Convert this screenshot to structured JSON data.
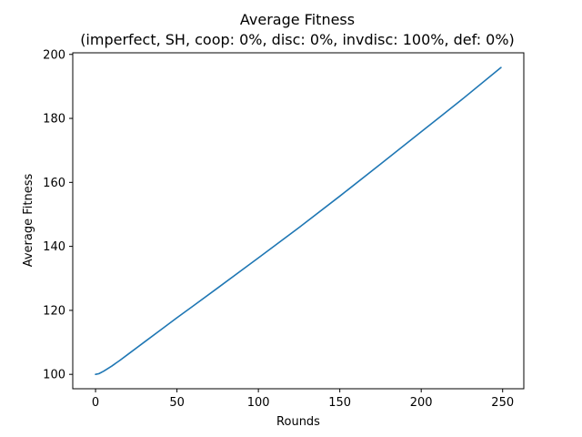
{
  "chart_data": {
    "type": "line",
    "title": "Average Fitness",
    "subtitle": "(imperfect, SH, coop: 0%, disc: 0%, invdisc: 100%, def: 0%)",
    "xlabel": "Rounds",
    "ylabel": "Average Fitness",
    "xlim": [
      -14,
      263
    ],
    "ylim": [
      95.5,
      200.5
    ],
    "xticks": [
      0,
      50,
      100,
      150,
      200,
      250
    ],
    "yticks": [
      100,
      120,
      140,
      160,
      180,
      200
    ],
    "grid": false,
    "series": [
      {
        "color": "#1f77b4",
        "x": [
          0,
          2,
          5,
          10,
          15,
          20,
          30,
          40,
          50,
          60,
          75,
          100,
          125,
          150,
          175,
          200,
          225,
          249
        ],
        "y": [
          100,
          100.2,
          101,
          102.6,
          104.4,
          106.3,
          110.1,
          113.9,
          117.7,
          121.4,
          127,
          136.4,
          145.9,
          155.7,
          165.7,
          175.8,
          185.9,
          195.9
        ]
      }
    ]
  }
}
